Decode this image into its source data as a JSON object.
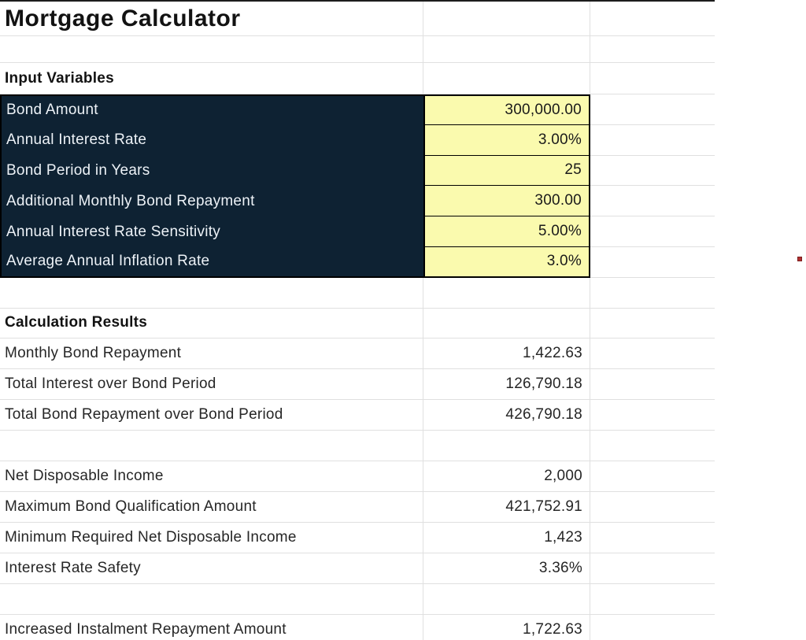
{
  "app": {
    "title": "Mortgage Calculator"
  },
  "input_section": {
    "header": "Input Variables",
    "rows": [
      {
        "label": "Bond Amount",
        "value": "300,000.00"
      },
      {
        "label": "Annual Interest Rate",
        "value": "3.00%"
      },
      {
        "label": "Bond Period in Years",
        "value": "25"
      },
      {
        "label": "Additional Monthly Bond Repayment",
        "value": "300.00"
      },
      {
        "label": "Annual Interest Rate Sensitivity",
        "value": "5.00%"
      },
      {
        "label": "Average Annual Inflation Rate",
        "value": "3.0%"
      }
    ]
  },
  "results_section": {
    "header": "Calculation Results",
    "group1": [
      {
        "label": "Monthly Bond Repayment",
        "value": "1,422.63"
      },
      {
        "label": "Total Interest over Bond Period",
        "value": "126,790.18"
      },
      {
        "label": "Total Bond Repayment over Bond Period",
        "value": "426,790.18"
      }
    ],
    "group2": [
      {
        "label": "Net Disposable Income",
        "value": "2,000"
      },
      {
        "label": "Maximum Bond Qualification Amount",
        "value": "421,752.91"
      },
      {
        "label": "Minimum Required Net Disposable Income",
        "value": "1,423"
      },
      {
        "label": "Interest Rate Safety",
        "value": "3.36%"
      }
    ],
    "group3": [
      {
        "label": "Increased Instalment Repayment Amount",
        "value": "1,722.63"
      }
    ]
  },
  "colors": {
    "input_label_bg": "#0e2233",
    "input_value_bg": "#fafaae",
    "marker_red": "#b03131"
  }
}
